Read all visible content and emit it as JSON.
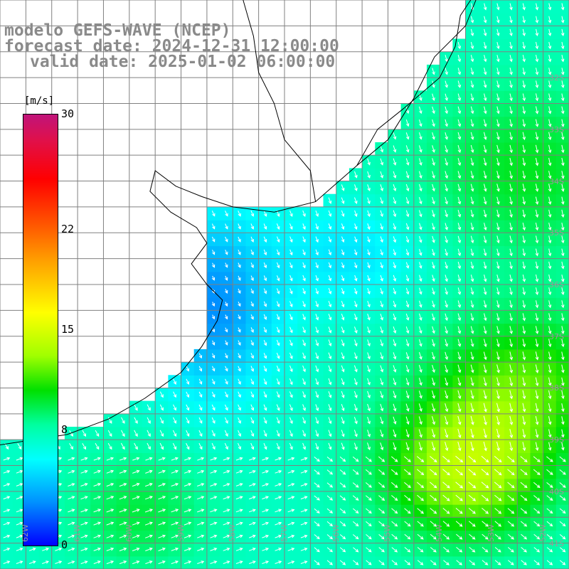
{
  "title": {
    "model": "modelo GEFS-WAVE (NCEP)",
    "forecast": "forecast date: 2024-12-31 12:00:00",
    "valid": "valid date: 2025-01-02 06:00:00"
  },
  "colorbar": {
    "unit": "[m/s]",
    "ticks": [
      {
        "value": 30,
        "label": "30"
      },
      {
        "value": 22,
        "label": "22"
      },
      {
        "value": 15,
        "label": "15"
      },
      {
        "value": 8,
        "label": "8"
      },
      {
        "value": 0,
        "label": "0"
      }
    ],
    "min": 0,
    "max": 30
  },
  "map": {
    "lon_range": [
      -62.5,
      -51.5
    ],
    "lat_range": [
      -41.5,
      -30.5
    ],
    "land_color": "#ffffff",
    "grid_color": "#808080",
    "coast_color": "#000000",
    "arrow_color": "#ffffff",
    "lat_labels": [
      "32S",
      "33S",
      "34S",
      "35S",
      "36S",
      "37S",
      "38S",
      "39S",
      "40S",
      "41S"
    ],
    "lon_labels": [
      "62W",
      "61W",
      "60W",
      "59W",
      "58W",
      "57W",
      "56W",
      "55W",
      "54W",
      "53W",
      "52W"
    ],
    "coastline": [
      [
        -53.3,
        -30.5
      ],
      [
        -53.5,
        -31.0
      ],
      [
        -54.1,
        -31.6
      ],
      [
        -54.5,
        -32.4
      ],
      [
        -55.0,
        -33.2
      ],
      [
        -55.6,
        -33.7
      ],
      [
        -56.4,
        -34.4
      ],
      [
        -57.2,
        -34.6
      ],
      [
        -58.0,
        -34.5
      ],
      [
        -58.6,
        -34.3
      ],
      [
        -59.1,
        -34.1
      ],
      [
        -59.5,
        -33.8
      ],
      [
        -59.6,
        -34.2
      ],
      [
        -59.2,
        -34.6
      ],
      [
        -58.7,
        -34.9
      ],
      [
        -58.5,
        -35.2
      ],
      [
        -58.8,
        -35.6
      ],
      [
        -58.5,
        -36.0
      ],
      [
        -58.2,
        -36.3
      ],
      [
        -58.3,
        -36.7
      ],
      [
        -58.6,
        -37.2
      ],
      [
        -59.0,
        -37.7
      ],
      [
        -59.7,
        -38.2
      ],
      [
        -60.4,
        -38.6
      ],
      [
        -61.2,
        -38.9
      ],
      [
        -62.5,
        -39.1
      ]
    ],
    "rivers": [
      [
        [
          -56.4,
          -34.4
        ],
        [
          -56.5,
          -33.8
        ],
        [
          -57.0,
          -33.2
        ],
        [
          -57.2,
          -32.5
        ],
        [
          -57.5,
          -31.9
        ],
        [
          -57.6,
          -31.2
        ],
        [
          -57.8,
          -30.5
        ]
      ],
      [
        [
          -55.6,
          -33.7
        ],
        [
          -55.2,
          -33.0
        ],
        [
          -54.7,
          -32.6
        ],
        [
          -54.0,
          -32.0
        ],
        [
          -53.7,
          -31.4
        ],
        [
          -53.6,
          -30.8
        ],
        [
          -53.4,
          -30.5
        ]
      ]
    ]
  }
}
